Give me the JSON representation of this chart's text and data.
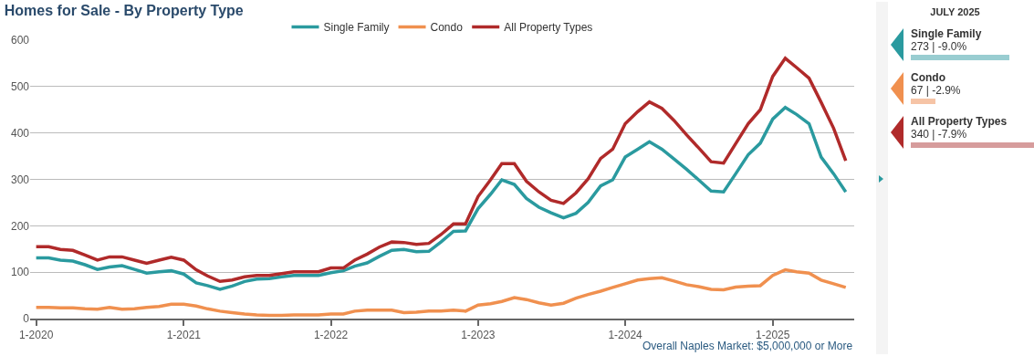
{
  "chart_data": [
    {
      "type": "line",
      "title": "Homes for Sale - By Property Type",
      "x": [
        "2020-01",
        "2020-02",
        "2020-03",
        "2020-04",
        "2020-05",
        "2020-06",
        "2020-07",
        "2020-08",
        "2020-09",
        "2020-10",
        "2020-11",
        "2020-12",
        "2021-01",
        "2021-02",
        "2021-03",
        "2021-04",
        "2021-05",
        "2021-06",
        "2021-07",
        "2021-08",
        "2021-09",
        "2021-10",
        "2021-11",
        "2021-12",
        "2022-01",
        "2022-02",
        "2022-03",
        "2022-04",
        "2022-05",
        "2022-06",
        "2022-07",
        "2022-08",
        "2022-09",
        "2022-10",
        "2022-11",
        "2022-12",
        "2023-01",
        "2023-02",
        "2023-03",
        "2023-04",
        "2023-05",
        "2023-06",
        "2023-07",
        "2023-08",
        "2023-09",
        "2023-10",
        "2023-11",
        "2023-12",
        "2024-01",
        "2024-02",
        "2024-03",
        "2024-04",
        "2024-05",
        "2024-06",
        "2024-07",
        "2024-08",
        "2024-09",
        "2024-10",
        "2024-11",
        "2024-12",
        "2025-01",
        "2025-02",
        "2025-03",
        "2025-04",
        "2025-05",
        "2025-06",
        "2025-07"
      ],
      "series": [
        {
          "name": "Single Family",
          "color": "#2a9a9f",
          "values": [
            131,
            131,
            126,
            124,
            116,
            106,
            111,
            114,
            106,
            98,
            101,
            103,
            96,
            77,
            71,
            63,
            70,
            80,
            85,
            86,
            90,
            93,
            93,
            93,
            99,
            103,
            113,
            120,
            134,
            147,
            149,
            144,
            145,
            165,
            188,
            189,
            237,
            268,
            299,
            289,
            259,
            240,
            228,
            217,
            227,
            250,
            286,
            299,
            348,
            365,
            381,
            365,
            344,
            322,
            299,
            275,
            273,
            312,
            353,
            378,
            430,
            455,
            440,
            420,
            348,
            312,
            273
          ]
        },
        {
          "name": "Condo",
          "color": "#f0904f",
          "values": [
            24,
            24,
            23,
            23,
            21,
            20,
            24,
            20,
            21,
            24,
            26,
            31,
            31,
            27,
            21,
            16,
            13,
            10,
            8,
            7,
            7,
            8,
            8,
            8,
            10,
            10,
            16,
            18,
            18,
            18,
            13,
            14,
            16,
            16,
            18,
            16,
            29,
            32,
            37,
            45,
            41,
            34,
            29,
            33,
            44,
            52,
            59,
            67,
            75,
            83,
            86,
            88,
            81,
            73,
            69,
            63,
            62,
            68,
            70,
            71,
            93,
            105,
            101,
            98,
            83,
            75,
            67
          ]
        },
        {
          "name": "All Property Types",
          "color": "#b02a2a",
          "values": [
            155,
            155,
            149,
            147,
            137,
            126,
            133,
            133,
            126,
            119,
            126,
            132,
            126,
            105,
            92,
            80,
            83,
            90,
            93,
            93,
            97,
            101,
            101,
            101,
            109,
            109,
            126,
            139,
            154,
            165,
            164,
            160,
            162,
            181,
            204,
            204,
            263,
            299,
            334,
            334,
            296,
            273,
            255,
            248,
            271,
            301,
            345,
            365,
            420,
            446,
            467,
            453,
            427,
            396,
            368,
            338,
            335,
            377,
            420,
            450,
            522,
            561,
            541,
            518,
            466,
            410,
            340
          ]
        }
      ],
      "xlim": [
        "2019-12-17",
        "2025-07-22"
      ],
      "xticks": [
        {
          "value": "2020-01",
          "label": "1-2020"
        },
        {
          "value": "2021-01",
          "label": "1-2021"
        },
        {
          "value": "2022-01",
          "label": "1-2022"
        },
        {
          "value": "2023-01",
          "label": "1-2023"
        },
        {
          "value": "2024-01",
          "label": "1-2024"
        },
        {
          "value": "2025-01",
          "label": "1-2025"
        }
      ],
      "ylim": [
        0,
        600
      ],
      "yticks": [
        0,
        100,
        200,
        300,
        400,
        500,
        600
      ],
      "grid": "y",
      "legend": "top",
      "marker": "none",
      "line_style": "solid",
      "annotations": [
        "Overall Naples Market: $5,000,000 or More"
      ]
    },
    {
      "type": "bar",
      "orientation": "horizontal",
      "title": "JULY 2025",
      "categories": [
        "Single Family",
        "Condo",
        "All Property Types"
      ],
      "values": [
        273,
        67,
        340
      ],
      "colors": [
        "#99cdd1",
        "#f6c4a6",
        "#d69c9c"
      ],
      "value_labels": [
        "273 | -9.0%",
        "67 | -2.9%",
        "340 | -7.9%"
      ]
    }
  ]
}
